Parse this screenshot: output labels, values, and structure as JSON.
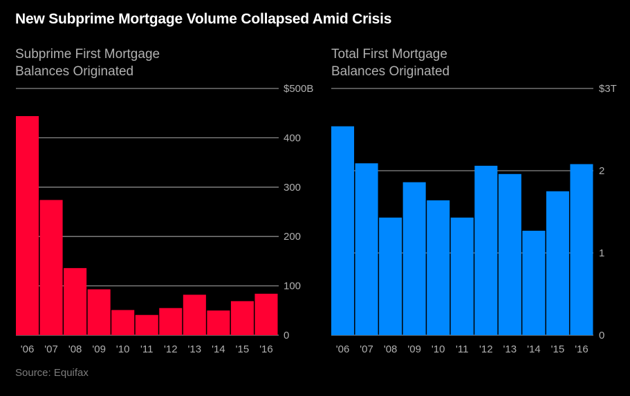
{
  "title": "New Subprime Mortgage Volume Collapsed Amid Crisis",
  "source": "Source: Equifax",
  "colors": {
    "left_bars": "#FF0033",
    "right_bars": "#0088FF",
    "gridline": "#8a8a8a",
    "text": "#b0b0b0"
  },
  "chart_data": [
    {
      "type": "bar",
      "title": "Subprime First Mortgage Balances Originated",
      "title_lines": [
        "Subprime First Mortgage",
        "Balances Originated"
      ],
      "categories": [
        "'06",
        "'07",
        "'08",
        "'09",
        "'10",
        "'11",
        "'12",
        "'13",
        "'14",
        "'15",
        "'16"
      ],
      "values": [
        444,
        274,
        136,
        93,
        51,
        41,
        55,
        82,
        50,
        69,
        84
      ],
      "unit": "billions USD",
      "ylim": [
        0,
        500
      ],
      "yticks": [
        0,
        100,
        200,
        300,
        400,
        500
      ],
      "ytick_labels": [
        "0",
        "100",
        "200",
        "300",
        "400",
        "$500B"
      ],
      "axis_side": "right",
      "grid": true,
      "color": "#FF0033"
    },
    {
      "type": "bar",
      "title": "Total First Mortgage Balances Originated",
      "title_lines": [
        "Total First Mortgage",
        "Balances Originated"
      ],
      "categories": [
        "'06",
        "'07",
        "'08",
        "'09",
        "'10",
        "'11",
        "'12",
        "'13",
        "'14",
        "'15",
        "'16"
      ],
      "values": [
        2.54,
        2.09,
        1.43,
        1.86,
        1.64,
        1.43,
        2.06,
        1.96,
        1.27,
        1.75,
        2.08
      ],
      "unit": "trillions USD",
      "ylim": [
        0,
        3
      ],
      "yticks": [
        0,
        1,
        2,
        3
      ],
      "ytick_labels": [
        "0",
        "1",
        "2",
        "$3T"
      ],
      "axis_side": "right",
      "grid": true,
      "color": "#0088FF"
    }
  ]
}
